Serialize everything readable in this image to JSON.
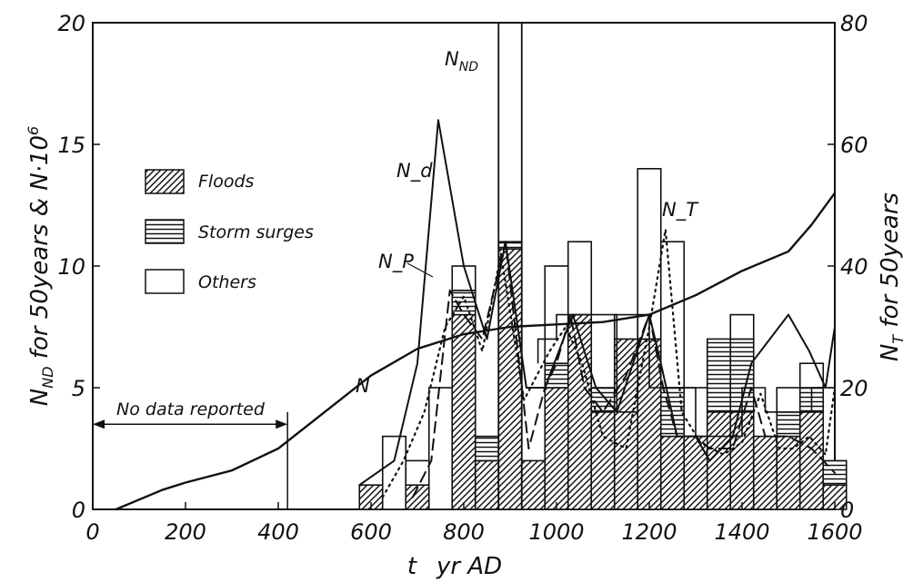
{
  "chart_data": {
    "type": "bar",
    "title": "",
    "x_axis": {
      "label_t": "t",
      "label_rest": "yr AD",
      "range": [
        0,
        1600
      ],
      "ticks": [
        "0",
        "200",
        "400",
        "600",
        "800",
        "1000",
        "1200",
        "1400",
        "1600"
      ]
    },
    "y_left": {
      "label": "N_ND for 50years & N·10^6",
      "label_parts": {
        "n": "N",
        "nd": "ND",
        "rest": " for 50years & N·10",
        "exp": "6"
      },
      "range": [
        0,
        20
      ],
      "ticks": [
        "0",
        "5",
        "10",
        "15",
        "20"
      ]
    },
    "y_right": {
      "label": "N_T for 50years",
      "label_parts": {
        "n": "N",
        "t": "T",
        "rest": " for 50years"
      },
      "range": [
        0,
        80
      ],
      "ticks": [
        "0",
        "20",
        "40",
        "60",
        "80"
      ]
    },
    "legend": {
      "placement": "upper-left",
      "entries": [
        {
          "name": "Floods",
          "pattern": "diagonal-hatch"
        },
        {
          "name": "Storm surges",
          "pattern": "horizontal-hatch"
        },
        {
          "name": "Others",
          "pattern": "empty"
        }
      ]
    },
    "bar_width_years": 50,
    "stacked_bars": [
      {
        "start": 575,
        "floods": 1,
        "storm_surges": 0,
        "others": 0
      },
      {
        "start": 625,
        "floods": 0,
        "storm_surges": 0,
        "others": 3
      },
      {
        "start": 675,
        "floods": 1,
        "storm_surges": 0,
        "others": 1
      },
      {
        "start": 725,
        "floods": 0,
        "storm_surges": 0,
        "others": 5
      },
      {
        "start": 775,
        "floods": 8,
        "storm_surges": 1,
        "others": 1
      },
      {
        "start": 825,
        "floods": 2,
        "storm_surges": 1,
        "others": 0
      },
      {
        "start": 875,
        "floods": 10.7,
        "storm_surges": 0.3,
        "others": 0
      },
      {
        "start": 925,
        "floods": 2,
        "storm_surges": 0,
        "others": 0
      },
      {
        "start": 975,
        "floods": 5,
        "storm_surges": 1,
        "others": 4
      },
      {
        "start": 1025,
        "floods": 8,
        "storm_surges": 0,
        "others": 3
      },
      {
        "start": 1075,
        "floods": 4,
        "storm_surges": 1,
        "others": 0
      },
      {
        "start": 1125,
        "floods": 7,
        "storm_surges": 0,
        "others": 1
      },
      {
        "start": 1175,
        "floods": 7,
        "storm_surges": 0,
        "others": 7
      },
      {
        "start": 1225,
        "floods": 3,
        "storm_surges": 2,
        "others": 6
      },
      {
        "start": 1275,
        "floods": 3,
        "storm_surges": 0,
        "others": 2
      },
      {
        "start": 1325,
        "floods": 4,
        "storm_surges": 3,
        "others": 0
      },
      {
        "start": 1375,
        "floods": 4,
        "storm_surges": 3,
        "others": 1
      },
      {
        "start": 1425,
        "floods": 3,
        "storm_surges": 0,
        "others": 0
      },
      {
        "start": 1475,
        "floods": 3,
        "storm_surges": 1,
        "others": 1
      },
      {
        "start": 1525,
        "floods": 4,
        "storm_surges": 1,
        "others": 1
      },
      {
        "start": 1575,
        "floods": 1,
        "storm_surges": 1,
        "others": 0
      }
    ],
    "nnd_open_bar": {
      "start": 875,
      "value": 20,
      "label": "N_ND",
      "label_parts": {
        "n": "N",
        "sub": "ND"
      }
    },
    "step_outline": [
      [
        960,
        6
      ],
      [
        960,
        7
      ],
      [
        1000,
        7
      ],
      [
        1000,
        8
      ],
      [
        1130,
        8
      ],
      [
        1130,
        4
      ],
      [
        1175,
        4
      ],
      [
        1175,
        8
      ],
      [
        1200,
        8
      ],
      [
        1200,
        5
      ],
      [
        1300,
        5
      ],
      [
        1300,
        3
      ],
      [
        1400,
        3
      ],
      [
        1400,
        5
      ],
      [
        1450,
        5
      ],
      [
        1450,
        4
      ],
      [
        1550,
        4
      ],
      [
        1550,
        5
      ],
      [
        1600,
        5
      ]
    ],
    "series": [
      {
        "name": "N",
        "axis": "left",
        "style": "solid-smooth",
        "points": [
          [
            50,
            0
          ],
          [
            150,
            0.8
          ],
          [
            200,
            1.1
          ],
          [
            300,
            1.6
          ],
          [
            400,
            2.5
          ],
          [
            500,
            4
          ],
          [
            600,
            5.5
          ],
          [
            700,
            6.6
          ],
          [
            800,
            7.2
          ],
          [
            900,
            7.5
          ],
          [
            1000,
            7.6
          ],
          [
            1100,
            7.7
          ],
          [
            1200,
            8
          ],
          [
            1300,
            8.8
          ],
          [
            1400,
            9.8
          ],
          [
            1500,
            10.6
          ],
          [
            1550,
            11.7
          ],
          [
            1600,
            13
          ]
        ]
      },
      {
        "name": "N_d",
        "axis": "left",
        "style": "solid",
        "points": [
          [
            575,
            1
          ],
          [
            650,
            2
          ],
          [
            700,
            6
          ],
          [
            745,
            16
          ],
          [
            800,
            10
          ],
          [
            850,
            7
          ],
          [
            890,
            11
          ],
          [
            935,
            5
          ],
          [
            975,
            5
          ],
          [
            1035,
            8
          ],
          [
            1085,
            5
          ],
          [
            1130,
            4
          ],
          [
            1200,
            8
          ],
          [
            1225,
            6
          ],
          [
            1260,
            3
          ],
          [
            1300,
            3
          ],
          [
            1330,
            2
          ],
          [
            1380,
            3
          ],
          [
            1420,
            6
          ],
          [
            1500,
            8
          ],
          [
            1545,
            6.5
          ],
          [
            1580,
            5
          ],
          [
            1600,
            7.5
          ]
        ]
      },
      {
        "name": "N_P",
        "axis": "left",
        "style": "dashed",
        "points": [
          [
            690,
            0.5
          ],
          [
            730,
            2
          ],
          [
            770,
            9
          ],
          [
            800,
            8
          ],
          [
            840,
            7
          ],
          [
            890,
            11
          ],
          [
            940,
            2.5
          ],
          [
            975,
            5
          ],
          [
            1000,
            6
          ],
          [
            1030,
            8
          ],
          [
            1060,
            5
          ],
          [
            1100,
            4
          ],
          [
            1150,
            5.5
          ],
          [
            1200,
            8
          ],
          [
            1230,
            5
          ],
          [
            1260,
            3
          ],
          [
            1300,
            3
          ],
          [
            1330,
            2.5
          ],
          [
            1380,
            2.5
          ],
          [
            1420,
            5
          ],
          [
            1450,
            3
          ],
          [
            1500,
            3
          ],
          [
            1550,
            2.5
          ],
          [
            1600,
            1.5
          ]
        ]
      },
      {
        "name": "N_T",
        "axis": "right",
        "style": "dotted",
        "points": [
          [
            625,
            2
          ],
          [
            670,
            8
          ],
          [
            715,
            16
          ],
          [
            760,
            30
          ],
          [
            800,
            35
          ],
          [
            840,
            26
          ],
          [
            880,
            42
          ],
          [
            930,
            18
          ],
          [
            985,
            26
          ],
          [
            1020,
            30
          ],
          [
            1055,
            24
          ],
          [
            1100,
            12
          ],
          [
            1150,
            10
          ],
          [
            1200,
            30
          ],
          [
            1235,
            46
          ],
          [
            1270,
            16
          ],
          [
            1310,
            11
          ],
          [
            1360,
            9
          ],
          [
            1400,
            11
          ],
          [
            1440,
            19
          ],
          [
            1480,
            10
          ],
          [
            1510,
            10
          ],
          [
            1545,
            12
          ],
          [
            1580,
            9
          ],
          [
            1600,
            20
          ]
        ]
      }
    ],
    "annotations": {
      "no_data": {
        "text": "No data reported",
        "x_start": 0,
        "x_end": 420,
        "level": 3.5
      }
    }
  }
}
